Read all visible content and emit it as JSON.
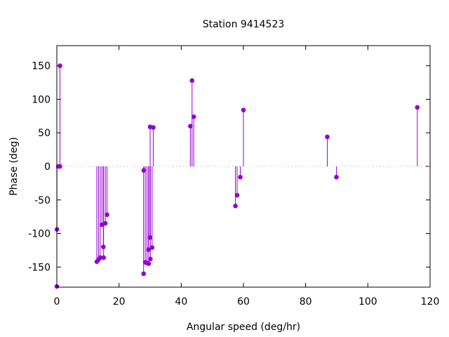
{
  "chart_data": {
    "type": "stem",
    "title": "Station 9414523",
    "xlabel": "Angular speed (deg/hr)",
    "ylabel": "Phase (deg)",
    "xlim": [
      0,
      120
    ],
    "ylim": [
      -180,
      180
    ],
    "xticks": [
      0,
      20,
      40,
      60,
      80,
      100,
      120
    ],
    "yticks": [
      -150,
      -100,
      -50,
      0,
      50,
      100,
      150
    ],
    "color": "#9400d3",
    "zero_line": true,
    "x": [
      0,
      0.04,
      0.5,
      1.0,
      1.0,
      12.85,
      13.4,
      13.94,
      14.49,
      14.96,
      15.04,
      15.59,
      16.14,
      27.9,
      27.97,
      28.44,
      28.98,
      29.46,
      29.53,
      29.96,
      30.0,
      30.08,
      30.63,
      31.0,
      42.93,
      43.48,
      44.03,
      57.42,
      57.97,
      58.98,
      60.0,
      86.95,
      89.9,
      115.9
    ],
    "y": [
      -179,
      -94,
      0,
      0,
      150,
      -142,
      -139,
      -136,
      -87,
      -120,
      -136,
      -85,
      -72,
      -160,
      -6,
      -143,
      -144,
      -124,
      -145,
      -106,
      59,
      -138,
      -121,
      58,
      60,
      128,
      74,
      -59,
      -43,
      -16,
      84,
      44,
      -16,
      88
    ]
  }
}
